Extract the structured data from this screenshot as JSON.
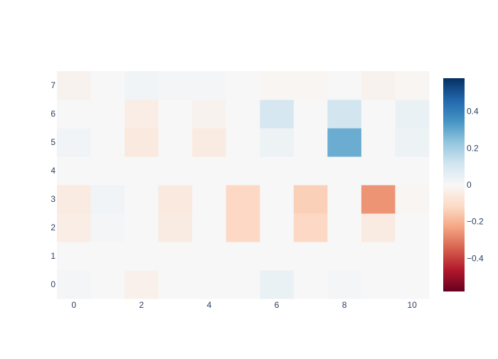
{
  "chart_data": {
    "type": "heatmap",
    "title": "",
    "xlabel": "",
    "ylabel": "",
    "x": [
      0,
      1,
      2,
      3,
      4,
      5,
      6,
      7,
      8,
      9,
      10
    ],
    "y": [
      0,
      1,
      2,
      3,
      4,
      5,
      6,
      7
    ],
    "x_tick_labels": [
      "0",
      "2",
      "4",
      "6",
      "8",
      "10"
    ],
    "y_tick_labels": [
      "0",
      "1",
      "2",
      "3",
      "4",
      "5",
      "6",
      "7"
    ],
    "z": [
      [
        0.01,
        0.0,
        -0.03,
        0.0,
        0.0,
        0.0,
        0.04,
        0.0,
        0.01,
        0.0,
        0.0
      ],
      [
        0.0,
        0.0,
        0.0,
        0.0,
        0.0,
        0.0,
        0.0,
        0.0,
        0.0,
        0.0,
        0.0
      ],
      [
        -0.04,
        0.01,
        0.0,
        -0.05,
        0.0,
        -0.12,
        0.0,
        -0.12,
        0.0,
        -0.05,
        0.0
      ],
      [
        -0.05,
        0.02,
        0.0,
        -0.06,
        0.0,
        -0.12,
        0.0,
        -0.14,
        0.0,
        -0.26,
        -0.01
      ],
      [
        0.0,
        0.0,
        0.0,
        0.0,
        0.0,
        0.0,
        0.0,
        0.0,
        0.0,
        0.0,
        0.0
      ],
      [
        0.02,
        0.0,
        -0.06,
        0.0,
        -0.05,
        0.0,
        0.03,
        0.0,
        0.29,
        0.0,
        0.03
      ],
      [
        0.0,
        0.0,
        -0.04,
        0.0,
        -0.02,
        0.0,
        0.1,
        0.0,
        0.11,
        0.0,
        0.04
      ],
      [
        -0.02,
        0.0,
        0.02,
        0.01,
        0.01,
        0.0,
        -0.01,
        -0.01,
        0.0,
        -0.02,
        -0.01
      ]
    ],
    "zlim": [
      -0.58,
      0.58
    ],
    "colorscale": "RdBu",
    "colorbar": {
      "tick_values": [
        0.4,
        0.2,
        0,
        -0.2,
        -0.4
      ],
      "tick_labels": [
        "0.4",
        "0.2",
        "0",
        "−0.2",
        "−0.4"
      ]
    },
    "grid": false
  }
}
